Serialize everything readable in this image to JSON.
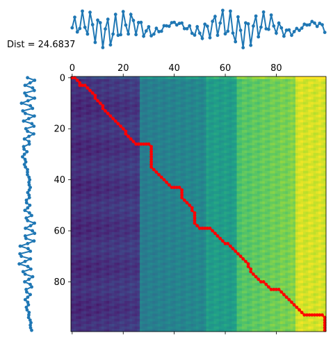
{
  "chart_data": {
    "type": "heatmap",
    "title": "Dist = 24.6837",
    "xlabel": "",
    "ylabel": "",
    "xlim": [
      0,
      99
    ],
    "ylim": [
      99,
      0
    ],
    "x_ticks": [
      "0",
      "20",
      "40",
      "60",
      "80"
    ],
    "y_ticks": [
      "0",
      "20",
      "40",
      "60",
      "80"
    ],
    "colormap": "viridis",
    "line_color": "#1f77b4",
    "path_color": "#ff0000",
    "warping_path": [
      [
        0,
        0
      ],
      [
        1,
        0
      ],
      [
        2,
        1
      ],
      [
        3,
        2
      ],
      [
        3,
        3
      ],
      [
        4,
        3
      ],
      [
        5,
        3
      ],
      [
        6,
        4
      ],
      [
        7,
        5
      ],
      [
        8,
        6
      ],
      [
        9,
        7
      ],
      [
        9,
        8
      ],
      [
        10,
        9
      ],
      [
        11,
        10
      ],
      [
        12,
        11
      ],
      [
        12,
        12
      ],
      [
        13,
        13
      ],
      [
        14,
        14
      ],
      [
        15,
        15
      ],
      [
        16,
        16
      ],
      [
        17,
        17
      ],
      [
        18,
        18
      ],
      [
        19,
        19
      ],
      [
        20,
        20
      ],
      [
        21,
        21
      ],
      [
        21,
        22
      ],
      [
        22,
        23
      ],
      [
        23,
        24
      ],
      [
        24,
        25
      ],
      [
        25,
        26
      ],
      [
        26,
        26
      ],
      [
        27,
        26
      ],
      [
        28,
        26
      ],
      [
        29,
        26
      ],
      [
        30,
        26
      ],
      [
        31,
        27
      ],
      [
        31,
        28
      ],
      [
        31,
        29
      ],
      [
        31,
        30
      ],
      [
        31,
        31
      ],
      [
        31,
        32
      ],
      [
        31,
        33
      ],
      [
        31,
        34
      ],
      [
        31,
        35
      ],
      [
        32,
        36
      ],
      [
        33,
        37
      ],
      [
        34,
        38
      ],
      [
        35,
        39
      ],
      [
        36,
        40
      ],
      [
        37,
        41
      ],
      [
        38,
        42
      ],
      [
        39,
        43
      ],
      [
        40,
        43
      ],
      [
        41,
        43
      ],
      [
        42,
        43
      ],
      [
        43,
        44
      ],
      [
        43,
        45
      ],
      [
        43,
        46
      ],
      [
        43,
        47
      ],
      [
        44,
        48
      ],
      [
        45,
        49
      ],
      [
        46,
        50
      ],
      [
        47,
        51
      ],
      [
        47,
        52
      ],
      [
        48,
        53
      ],
      [
        48,
        54
      ],
      [
        48,
        55
      ],
      [
        48,
        56
      ],
      [
        48,
        57
      ],
      [
        49,
        58
      ],
      [
        50,
        59
      ],
      [
        51,
        59
      ],
      [
        52,
        59
      ],
      [
        53,
        59
      ],
      [
        54,
        59
      ],
      [
        55,
        60
      ],
      [
        56,
        61
      ],
      [
        57,
        62
      ],
      [
        58,
        63
      ],
      [
        59,
        64
      ],
      [
        60,
        65
      ],
      [
        61,
        65
      ],
      [
        62,
        66
      ],
      [
        63,
        67
      ],
      [
        64,
        68
      ],
      [
        65,
        69
      ],
      [
        66,
        70
      ],
      [
        67,
        71
      ],
      [
        68,
        72
      ],
      [
        69,
        73
      ],
      [
        69,
        74
      ],
      [
        70,
        75
      ],
      [
        70,
        76
      ],
      [
        71,
        77
      ],
      [
        72,
        78
      ],
      [
        73,
        79
      ],
      [
        74,
        80
      ],
      [
        75,
        80
      ],
      [
        76,
        81
      ],
      [
        77,
        82
      ],
      [
        78,
        83
      ],
      [
        79,
        83
      ],
      [
        80,
        83
      ],
      [
        81,
        83
      ],
      [
        82,
        84
      ],
      [
        83,
        85
      ],
      [
        84,
        86
      ],
      [
        85,
        87
      ],
      [
        86,
        88
      ],
      [
        87,
        89
      ],
      [
        88,
        90
      ],
      [
        89,
        91
      ],
      [
        90,
        92
      ],
      [
        91,
        93
      ],
      [
        92,
        93
      ],
      [
        93,
        93
      ],
      [
        94,
        93
      ],
      [
        95,
        93
      ],
      [
        96,
        93
      ],
      [
        97,
        93
      ],
      [
        98,
        93
      ],
      [
        99,
        94
      ],
      [
        99,
        95
      ],
      [
        99,
        96
      ],
      [
        99,
        97
      ],
      [
        99,
        98
      ],
      [
        99,
        99
      ]
    ]
  }
}
